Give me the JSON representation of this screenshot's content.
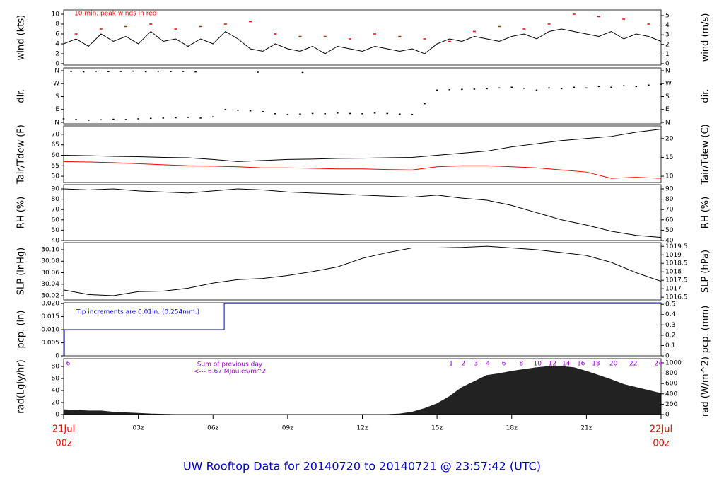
{
  "title": "UW Rooftop Data for 20140720  to  20140721 @ 23:57:42  (UTC)",
  "chart_data": [
    {
      "type": "line",
      "ylabel": "wind (kts)",
      "y2label": "wind (m/s)",
      "annotation": "10 min. peak winds in red",
      "xlim": [
        0,
        24
      ],
      "ylim": [
        -0.29,
        10.86
      ],
      "yticks": [
        0,
        2,
        4,
        6,
        8,
        10
      ],
      "y2lim": [
        -0.15,
        5.59
      ],
      "y2ticks": [
        0,
        1,
        2,
        3,
        4,
        5
      ],
      "series": [
        {
          "color": "#000000",
          "marker": "line",
          "x": [
            0,
            0.5,
            1,
            1.5,
            2,
            2.5,
            3,
            3.5,
            4,
            4.5,
            5,
            5.5,
            6,
            6.5,
            7,
            7.5,
            8,
            8.5,
            9,
            9.5,
            10,
            10.5,
            11,
            11.5,
            12,
            12.5,
            13,
            13.5,
            14,
            14.5,
            15,
            15.5,
            16,
            16.5,
            17,
            17.5,
            18,
            18.5,
            19,
            19.5,
            20,
            20.5,
            21,
            21.5,
            22,
            22.5,
            23,
            23.5,
            24
          ],
          "values": [
            4,
            5,
            3.5,
            6,
            4.5,
            5.5,
            4,
            6.5,
            4.5,
            5,
            3.5,
            5,
            4,
            6.5,
            5,
            3,
            2.5,
            4,
            3,
            2.5,
            3.5,
            2,
            3.5,
            3,
            2.5,
            3.5,
            3,
            2.5,
            3,
            2,
            4,
            5,
            4.5,
            5.5,
            5,
            4.5,
            5.5,
            6,
            5,
            6.5,
            7,
            6.5,
            6,
            5.5,
            6.5,
            5,
            6,
            5.5,
            4.5
          ]
        },
        {
          "color": "#ff0000",
          "marker": "dash",
          "x": [
            0.5,
            1.5,
            2.5,
            3.5,
            4.5,
            5.5,
            6.5,
            7.5,
            8.5,
            9.5,
            10.5,
            11.5,
            12.5,
            13.5,
            14.5,
            15.5,
            16.5,
            17.5,
            18.5,
            19.5,
            20.5,
            21.5,
            22.5,
            23.5
          ],
          "values": [
            6,
            7,
            7.5,
            8,
            7,
            7.5,
            8,
            8.5,
            6,
            5.5,
            5.5,
            5,
            6,
            5.5,
            5,
            4.5,
            6.5,
            7.5,
            7,
            8,
            10,
            9.5,
            9,
            8
          ]
        }
      ]
    },
    {
      "type": "scatter",
      "ylabel": "dir.",
      "y2label": "dir.",
      "xlim": [
        0,
        24
      ],
      "ylim": [
        -9.9,
        379.7
      ],
      "yticks": [
        {
          "value": 0,
          "label": "N"
        },
        {
          "value": 90,
          "label": "E"
        },
        {
          "value": 180,
          "label": "S"
        },
        {
          "value": 270,
          "label": "W"
        },
        {
          "value": 360,
          "label": "N"
        }
      ],
      "y2lim": [
        -9.9,
        379.7
      ],
      "y2ticks": [
        {
          "value": 0,
          "label": "N"
        },
        {
          "value": 90,
          "label": "E"
        },
        {
          "value": 180,
          "label": "S"
        },
        {
          "value": 270,
          "label": "W"
        },
        {
          "value": 360,
          "label": "N"
        }
      ],
      "series": [
        {
          "color": "#000000",
          "x": [
            0,
            0.5,
            1,
            1.5,
            2,
            2.5,
            3,
            3.5,
            4,
            4.5,
            5,
            5.5,
            6,
            6.5,
            7,
            7.5,
            8,
            8.5,
            9,
            9.5,
            10,
            10.5,
            11,
            11.5,
            12,
            12.5,
            13,
            13.5,
            14,
            14.5,
            15,
            15.5,
            16,
            16.5,
            17,
            17.5,
            18,
            18.5,
            19,
            19.5,
            20,
            20.5,
            21,
            21.5,
            22,
            22.5,
            23,
            23.5,
            24
          ],
          "values": [
            25,
            20,
            15,
            18,
            22,
            20,
            25,
            28,
            30,
            32,
            35,
            30,
            38,
            90,
            85,
            80,
            75,
            60,
            55,
            58,
            62,
            60,
            65,
            62,
            60,
            65,
            62,
            58,
            55,
            130,
            225,
            228,
            230,
            232,
            235,
            240,
            245,
            238,
            225,
            240,
            235,
            245,
            240,
            250,
            245,
            255,
            250,
            260,
            265
          ]
        },
        {
          "color": "#000000",
          "x": [
            0.3,
            0.8,
            1.3,
            1.8,
            2.3,
            2.8,
            3.3,
            3.8,
            4.3,
            4.8,
            5.3,
            7.8,
            9.6
          ],
          "values": [
            355,
            352,
            356,
            354,
            355,
            357,
            353,
            356,
            354,
            355,
            352,
            350,
            348
          ]
        }
      ]
    },
    {
      "type": "line",
      "ylabel": "Tair/Tdew (F)",
      "y2label": "Tair/Tdew (C)",
      "xlim": [
        0,
        24
      ],
      "ylim": [
        47,
        74
      ],
      "yticks": [
        50,
        55,
        60,
        65,
        70
      ],
      "y2lim": [
        8.33,
        23.33
      ],
      "y2ticks": [
        10,
        15,
        20
      ],
      "series": [
        {
          "color": "#000000",
          "marker": "line",
          "x": [
            0,
            1,
            2,
            3,
            4,
            5,
            6,
            7,
            8,
            9,
            10,
            11,
            12,
            13,
            14,
            15,
            16,
            17,
            18,
            19,
            20,
            21,
            22,
            23,
            24
          ],
          "values": [
            60,
            59.8,
            59.5,
            59.3,
            59,
            58.8,
            58,
            57,
            57.5,
            58,
            58.2,
            58.5,
            58.6,
            58.8,
            59,
            60,
            61,
            62,
            64,
            65.5,
            67,
            68,
            69,
            71,
            72.5
          ]
        },
        {
          "color": "#ff0000",
          "marker": "line",
          "x": [
            0,
            1,
            2,
            3,
            4,
            5,
            6,
            7,
            8,
            9,
            10,
            11,
            12,
            13,
            14,
            15,
            16,
            17,
            18,
            19,
            20,
            21,
            22,
            23,
            24
          ],
          "values": [
            57,
            56.8,
            56.5,
            56,
            55.5,
            55,
            54.8,
            54.5,
            54,
            54,
            53.8,
            53.5,
            53.5,
            53.2,
            53,
            54.5,
            55,
            55,
            54.5,
            54,
            53,
            52,
            49,
            49.5,
            49
          ]
        }
      ]
    },
    {
      "type": "line",
      "ylabel": "RH (%)",
      "y2label": "RH (%)",
      "xlim": [
        0,
        24
      ],
      "ylim": [
        40,
        94.1
      ],
      "yticks": [
        40,
        50,
        60,
        70,
        80,
        90
      ],
      "y2lim": [
        40,
        94.1
      ],
      "y2ticks": [
        40,
        50,
        60,
        70,
        80,
        90
      ],
      "series": [
        {
          "color": "#000000",
          "marker": "line",
          "x": [
            0,
            1,
            2,
            3,
            4,
            5,
            6,
            7,
            8,
            9,
            10,
            11,
            12,
            13,
            14,
            15,
            16,
            17,
            18,
            19,
            20,
            21,
            22,
            23,
            24
          ],
          "values": [
            90,
            89,
            90,
            88,
            87,
            86,
            88,
            90,
            89,
            87,
            86,
            85,
            84,
            83,
            82,
            84,
            81,
            79,
            74,
            67,
            60,
            55,
            49,
            45,
            43
          ]
        }
      ]
    },
    {
      "type": "line",
      "ylabel": "SLP (inHg)",
      "y2label": "SLP (hPa)",
      "xlim": [
        0,
        24
      ],
      "ylim": [
        30.0126,
        30.1123
      ],
      "yticks": [
        {
          "value": 30.02,
          "label": "30.02"
        },
        {
          "value": 30.04,
          "label": "30.04"
        },
        {
          "value": 30.06,
          "label": "30.06"
        },
        {
          "value": 30.08,
          "label": "30.08"
        },
        {
          "value": 30.1,
          "label": "30.10"
        }
      ],
      "y2lim": [
        1016.34,
        1019.72
      ],
      "y2ticks": [
        1016.5,
        1017,
        1017.5,
        1018,
        1018.5,
        1019,
        1019.5
      ],
      "series": [
        {
          "color": "#000000",
          "marker": "line",
          "x": [
            0,
            1,
            2,
            3,
            4,
            5,
            6,
            7,
            8,
            9,
            10,
            11,
            12,
            13,
            14,
            15,
            16,
            17,
            18,
            19,
            20,
            21,
            22,
            23,
            24
          ],
          "values": [
            30.03,
            30.022,
            30.02,
            30.027,
            30.028,
            30.033,
            30.042,
            30.048,
            30.05,
            30.055,
            30.062,
            30.07,
            30.085,
            30.095,
            30.103,
            30.103,
            30.104,
            30.106,
            30.103,
            30.1,
            30.095,
            30.09,
            30.078,
            30.06,
            30.045
          ]
        }
      ]
    },
    {
      "type": "step",
      "ylabel": "pcp. (in)",
      "y2label": "pcp. (mm)",
      "annotation": "Tip increments are 0.01in. (0.254mm.)",
      "xlim": [
        0,
        24
      ],
      "ylim": [
        0,
        0.0203
      ],
      "yticks": [
        0,
        0.005,
        {
          "value": 0.01,
          "label": "0.010"
        },
        0.015,
        {
          "value": 0.02,
          "label": "0.020"
        }
      ],
      "y2lim": [
        0,
        0.515
      ],
      "y2ticks": [
        0,
        0.1,
        0.2,
        0.3,
        0.4,
        0.5
      ],
      "series": [
        {
          "color": "#0000cc",
          "x": [
            0,
            0.03,
            6.45,
            24
          ],
          "values": [
            0,
            0.01,
            0.02,
            0.02
          ]
        }
      ]
    },
    {
      "type": "area",
      "ylabel": "rad(Lgly/hr)",
      "y2label": "rad (W/m^2)",
      "annotations": [
        "Sum of previous day",
        "<--- 6.67 MJoules/m^2"
      ],
      "hour_marks": {
        "x": [
          0.1,
          15.48,
          15.97,
          16.48,
          16.96,
          17.6,
          18.3,
          18.95,
          19.55,
          20.1,
          20.7,
          21.3,
          22.0,
          22.8,
          23.8
        ],
        "labels": [
          6,
          1,
          2,
          3,
          4,
          6,
          8,
          10,
          12,
          14,
          16,
          18,
          20,
          22,
          24
        ]
      },
      "xlim": [
        0,
        24
      ],
      "ylim": [
        0,
        93
      ],
      "yticks": [
        0,
        20,
        40,
        60,
        80
      ],
      "y2lim": [
        0,
        1081.6
      ],
      "y2ticks": [
        0,
        200,
        400,
        600,
        800,
        1000
      ],
      "xticks": [
        {
          "value": 0,
          "label": [
            "21Jul",
            "00z"
          ],
          "color": "#ff0000"
        },
        {
          "value": 3,
          "label": "03z"
        },
        {
          "value": 6,
          "label": "06z"
        },
        {
          "value": 9,
          "label": "09z"
        },
        {
          "value": 12,
          "label": "12z"
        },
        {
          "value": 15,
          "label": "15z"
        },
        {
          "value": 18,
          "label": "18z"
        },
        {
          "value": 21,
          "label": "21z"
        },
        {
          "value": 24,
          "label": [
            "22Jul",
            "00z"
          ],
          "color": "#ff0000"
        }
      ],
      "series": [
        {
          "color": "#222222",
          "x": [
            0,
            0.5,
            1,
            1.5,
            2,
            2.5,
            3,
            3.5,
            4,
            4.5,
            5,
            5.5,
            6,
            6.5,
            7,
            7.5,
            8,
            8.5,
            9,
            9.5,
            10,
            10.5,
            11,
            11.5,
            12,
            12.5,
            13,
            13.5,
            14,
            14.5,
            15,
            15.5,
            16,
            16.5,
            17,
            17.5,
            18,
            18.5,
            19,
            19.5,
            20,
            20.5,
            21,
            21.5,
            22,
            22.5,
            23,
            23.5,
            24
          ],
          "values": [
            8,
            7,
            6,
            6,
            4,
            3,
            2,
            1,
            0.5,
            0,
            0,
            0,
            0,
            0,
            0,
            0,
            0,
            0,
            0,
            0,
            0,
            0,
            0,
            0,
            0,
            0,
            0,
            1,
            4,
            10,
            18,
            30,
            45,
            55,
            65,
            68,
            72,
            75,
            78,
            80,
            80,
            78,
            72,
            65,
            58,
            50,
            45,
            40,
            35
          ]
        }
      ]
    }
  ]
}
